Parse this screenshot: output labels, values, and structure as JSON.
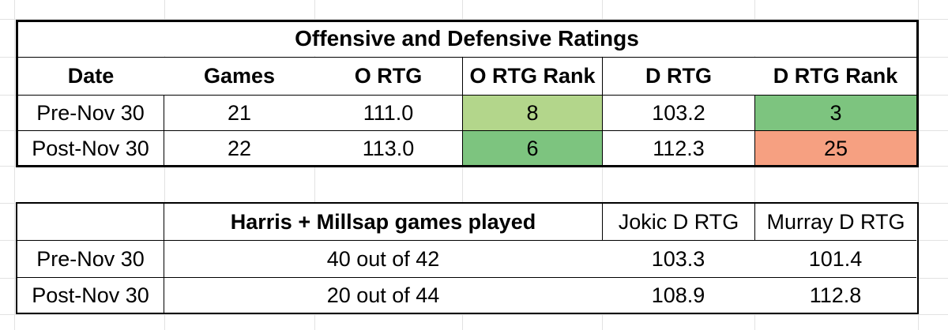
{
  "table1": {
    "title": "Offensive and Defensive Ratings",
    "headers": [
      "Date",
      "Games",
      "O RTG",
      "O RTG Rank",
      "D RTG",
      "D RTG Rank"
    ],
    "rows": [
      [
        "Pre-Nov 30",
        "21",
        "111.0",
        "8",
        "103.2",
        "3"
      ],
      [
        "Post-Nov 30",
        "22",
        "113.0",
        "6",
        "112.3",
        "25"
      ]
    ],
    "highlight_colors": {
      "light_green": "#b3d68b",
      "green": "#7dc47f",
      "salmon": "#f6a081"
    }
  },
  "table2": {
    "headers": [
      "Harris + Millsap games played",
      "Jokic D RTG",
      "Murray D RTG"
    ],
    "rows": [
      [
        "Pre-Nov 30",
        "40 out of 42",
        "103.3",
        "101.4"
      ],
      [
        "Post-Nov 30",
        "20 out of 44",
        "108.9",
        "112.8"
      ]
    ]
  }
}
